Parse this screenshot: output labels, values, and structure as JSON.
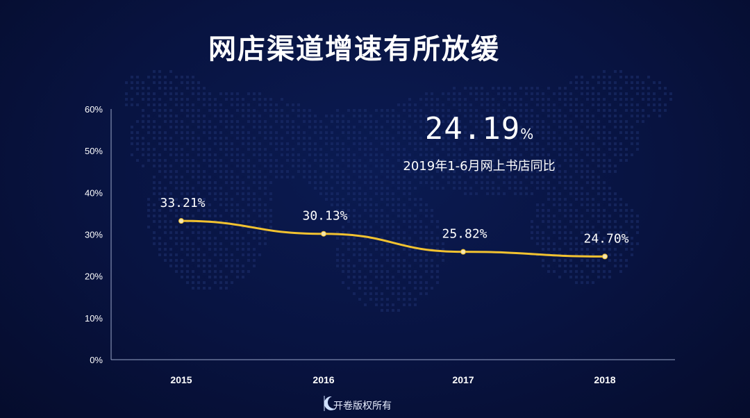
{
  "title": "网店渠道增速有所放缓",
  "highlight": {
    "value": "24.19",
    "unit": "%",
    "caption": "2019年1-6月网上书店同比"
  },
  "footer": {
    "text": "开卷版权所有"
  },
  "colors": {
    "line": "#f2c230",
    "background": "#081340",
    "text": "#ffffff"
  },
  "chart_data": {
    "type": "line",
    "categories": [
      "2015",
      "2016",
      "2017",
      "2018"
    ],
    "values": [
      33.21,
      30.13,
      25.82,
      24.7
    ],
    "data_labels": [
      "33.21%",
      "30.13%",
      "25.82%",
      "24.70%"
    ],
    "y_ticks": [
      "0%",
      "10%",
      "20%",
      "30%",
      "40%",
      "50%",
      "60%"
    ],
    "ylim": [
      0,
      60
    ],
    "grid": false,
    "title": "网店渠道增速有所放缓",
    "xlabel": "",
    "ylabel": ""
  }
}
